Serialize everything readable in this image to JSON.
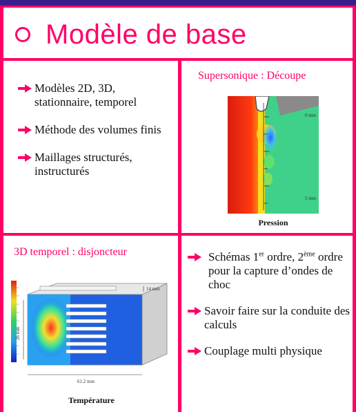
{
  "title": "Modèle de base",
  "left_list": [
    "Modèles 2D, 3D, stationnaire, temporel",
    "Méthode des volumes finis",
    "Maillages structurés, instructurés"
  ],
  "supersonic": {
    "heading": "Supersonique :  Découpe",
    "caption": "Pression",
    "label_top": "0 mm",
    "label_bottom": "5 mm"
  },
  "transient": {
    "heading": "3D temporel :  disjoncteur",
    "caption": "Température",
    "dim_right": "14 mm",
    "dim_left": "26 mm",
    "dim_bottom": "61.2 mm"
  },
  "right_list": {
    "item1_pre": "Schémas 1",
    "item1_sup1": "er",
    "item1_mid": " ordre, 2",
    "item1_sup2": "ème",
    "item1_post": " ordre pour la capture d’ondes de choc",
    "item2": "Savoir faire sur la conduite des calculs",
    "item3": "Couplage multi physique"
  },
  "colors": {
    "accent": "#ff0066",
    "topbar": "#3a1f8c",
    "arrow": "#ff0066"
  }
}
